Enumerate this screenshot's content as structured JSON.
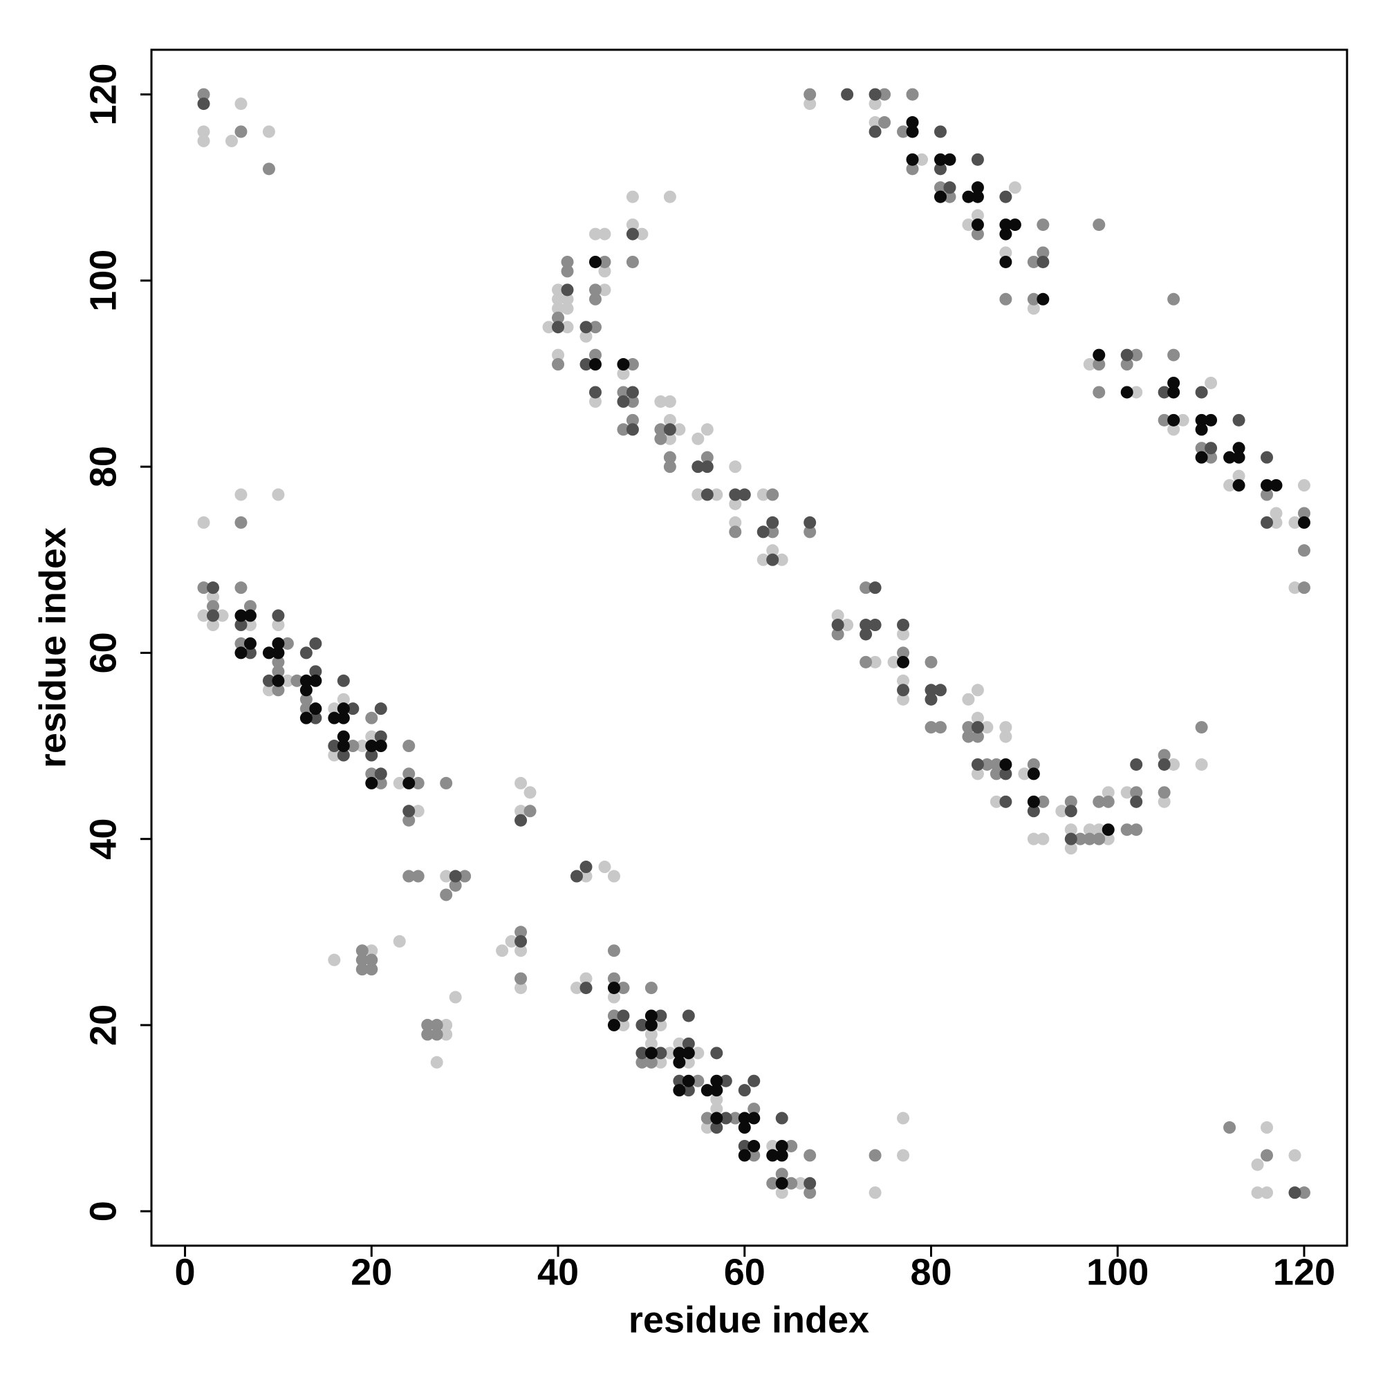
{
  "chart_data": {
    "type": "scatter",
    "xlabel": "residue index",
    "ylabel": "residue index",
    "xlim": [
      -3.6,
      124.6
    ],
    "ylim": [
      -3.7,
      124.8
    ],
    "xticks": [
      0,
      20,
      40,
      60,
      80,
      100,
      120
    ],
    "yticks": [
      0,
      20,
      40,
      60,
      80,
      100,
      120
    ],
    "series": [
      {
        "color": "#c8c8c8",
        "x": [
          2,
          2,
          6,
          5,
          9,
          2,
          6,
          10,
          2,
          3,
          3,
          4,
          7,
          10,
          9,
          11,
          16,
          17,
          16,
          19,
          20,
          23,
          25,
          28,
          16,
          20,
          23,
          28,
          28,
          27,
          29,
          34,
          35,
          36,
          36,
          36,
          37,
          36,
          43,
          45,
          46,
          42,
          43,
          46,
          47,
          50,
          51,
          50,
          52,
          51,
          53,
          55,
          54,
          57,
          57,
          56,
          63,
          66,
          64,
          74,
          77,
          77,
          116,
          119,
          115,
          115,
          116,
          70,
          71,
          74,
          76,
          77,
          77,
          77,
          84,
          85,
          85,
          86,
          85,
          88,
          88,
          87,
          90,
          91,
          92,
          94,
          95,
          95,
          97,
          98,
          99,
          99,
          101,
          106,
          105,
          109,
          39,
          40,
          40,
          40,
          41,
          41,
          41,
          40,
          44,
          45,
          45,
          45,
          43,
          44,
          48,
          52,
          48,
          49,
          47,
          51,
          52,
          52,
          53,
          52,
          55,
          56,
          55,
          57,
          59,
          59,
          59,
          62,
          63,
          62,
          64,
          67,
          74,
          74,
          79,
          84,
          85,
          89,
          88,
          91,
          97,
          102,
          110,
          107,
          106,
          112,
          113,
          117,
          117,
          120,
          119,
          119
        ],
        "y": [
          116,
          115,
          119,
          115,
          116,
          74,
          77,
          77,
          64,
          66,
          63,
          64,
          63,
          63,
          56,
          57,
          54,
          55,
          49,
          50,
          51,
          46,
          43,
          36,
          27,
          28,
          29,
          20,
          19,
          16,
          23,
          28,
          29,
          28,
          24,
          46,
          45,
          43,
          36,
          37,
          36,
          24,
          25,
          23,
          20,
          19,
          20,
          18,
          17,
          16,
          18,
          17,
          16,
          12,
          11,
          9,
          7,
          3,
          2,
          2,
          10,
          6,
          9,
          6,
          5,
          2,
          2,
          64,
          63,
          59,
          59,
          62,
          57,
          55,
          55,
          56,
          53,
          52,
          47,
          52,
          51,
          44,
          47,
          40,
          40,
          43,
          41,
          39,
          41,
          41,
          40,
          45,
          45,
          48,
          44,
          48,
          95,
          99,
          98,
          97,
          98,
          97,
          95,
          92,
          105,
          105,
          101,
          99,
          94,
          87,
          109,
          109,
          106,
          105,
          90,
          87,
          87,
          85,
          84,
          83,
          83,
          84,
          77,
          77,
          80,
          76,
          74,
          77,
          71,
          70,
          70,
          119,
          119,
          117,
          113,
          106,
          107,
          110,
          103,
          97,
          91,
          88,
          89,
          85,
          84,
          78,
          79,
          75,
          74,
          78,
          74,
          67
        ]
      },
      {
        "color": "#8c8c8c",
        "x": [
          2,
          6,
          9,
          6,
          2,
          3,
          6,
          7,
          6,
          10,
          10,
          11,
          10,
          12,
          13,
          13,
          18,
          20,
          20,
          21,
          24,
          24,
          25,
          24,
          24,
          25,
          30,
          29,
          28,
          28,
          19,
          19,
          20,
          19,
          20,
          26,
          27,
          26,
          27,
          36,
          36,
          37,
          46,
          46,
          47,
          46,
          50,
          49,
          50,
          55,
          56,
          59,
          61,
          61,
          65,
          64,
          63,
          65,
          67,
          67,
          74,
          112,
          116,
          120,
          70,
          73,
          73,
          77,
          80,
          80,
          81,
          84,
          84,
          85,
          86,
          87,
          87,
          91,
          92,
          95,
          96,
          97,
          98,
          98,
          99,
          102,
          101,
          102,
          105,
          105,
          109,
          40,
          41,
          41,
          40,
          45,
          44,
          44,
          44,
          44,
          48,
          48,
          47,
          48,
          48,
          47,
          51,
          51,
          52,
          52,
          56,
          59,
          63,
          63,
          67,
          67,
          75,
          75,
          78,
          77,
          78,
          81,
          82,
          85,
          88,
          91,
          92,
          92,
          91,
          98,
          98,
          98,
          102,
          101,
          106,
          106,
          105,
          109,
          110,
          116,
          120,
          120,
          120
        ],
        "y": [
          120,
          116,
          112,
          74,
          67,
          65,
          67,
          65,
          61,
          59,
          58,
          61,
          56,
          57,
          55,
          54,
          50,
          53,
          47,
          46,
          50,
          47,
          46,
          42,
          36,
          36,
          36,
          35,
          34,
          46,
          28,
          27,
          27,
          26,
          26,
          20,
          20,
          19,
          19,
          30,
          25,
          43,
          28,
          25,
          24,
          21,
          24,
          16,
          16,
          14,
          10,
          10,
          11,
          6,
          7,
          4,
          3,
          3,
          2,
          6,
          6,
          9,
          6,
          2,
          62,
          67,
          59,
          60,
          59,
          52,
          52,
          52,
          51,
          51,
          48,
          48,
          47,
          48,
          44,
          44,
          40,
          40,
          40,
          44,
          44,
          45,
          41,
          41,
          49,
          45,
          52,
          96,
          102,
          101,
          91,
          102,
          99,
          98,
          95,
          92,
          102,
          91,
          88,
          87,
          85,
          84,
          84,
          83,
          81,
          80,
          81,
          73,
          77,
          73,
          73,
          120,
          120,
          117,
          120,
          116,
          112,
          110,
          109,
          105,
          98,
          102,
          103,
          106,
          98,
          106,
          91,
          88,
          92,
          91,
          92,
          98,
          85,
          82,
          81,
          77,
          75,
          71,
          67
        ]
      },
      {
        "color": "#505050",
        "x": [
          2,
          3,
          3,
          6,
          7,
          10,
          9,
          13,
          14,
          14,
          14,
          17,
          18,
          16,
          17,
          21,
          21,
          20,
          21,
          24,
          29,
          36,
          36,
          42,
          43,
          43,
          47,
          49,
          51,
          49,
          51,
          54,
          54,
          53,
          54,
          57,
          58,
          58,
          57,
          61,
          60,
          60,
          64,
          67,
          119,
          70,
          74,
          73,
          74,
          73,
          77,
          77,
          80,
          81,
          80,
          85,
          85,
          88,
          88,
          91,
          95,
          95,
          102,
          102,
          105,
          40,
          41,
          48,
          43,
          43,
          44,
          48,
          47,
          48,
          52,
          55,
          56,
          56,
          59,
          60,
          62,
          63,
          63,
          67,
          71,
          74,
          74,
          81,
          81,
          82,
          85,
          88,
          92,
          101,
          105,
          109,
          110,
          113,
          116,
          116
        ],
        "y": [
          119,
          67,
          64,
          63,
          60,
          64,
          57,
          60,
          61,
          58,
          53,
          57,
          54,
          50,
          49,
          54,
          51,
          49,
          47,
          43,
          36,
          29,
          42,
          36,
          37,
          24,
          21,
          20,
          21,
          17,
          17,
          21,
          18,
          14,
          13,
          17,
          14,
          10,
          9,
          14,
          13,
          7,
          10,
          3,
          2,
          63,
          67,
          63,
          63,
          62,
          63,
          56,
          56,
          56,
          55,
          52,
          48,
          47,
          44,
          43,
          43,
          40,
          44,
          48,
          48,
          95,
          99,
          105,
          95,
          91,
          88,
          88,
          87,
          84,
          84,
          80,
          80,
          77,
          77,
          77,
          73,
          74,
          70,
          74,
          120,
          120,
          116,
          116,
          112,
          110,
          113,
          109,
          102,
          92,
          88,
          88,
          82,
          85,
          81,
          74
        ]
      },
      {
        "color": "#0a0a0a",
        "x": [
          6,
          7,
          6,
          7,
          9,
          10,
          10,
          10,
          13,
          14,
          13,
          13,
          14,
          16,
          17,
          17,
          17,
          17,
          20,
          21,
          20,
          24,
          46,
          46,
          50,
          50,
          50,
          53,
          54,
          53,
          54,
          53,
          56,
          57,
          57,
          57,
          60,
          61,
          60,
          61,
          60,
          64,
          63,
          64,
          64,
          77,
          88,
          91,
          91,
          99,
          44,
          44,
          47,
          78,
          78,
          78,
          81,
          82,
          81,
          84,
          85,
          85,
          85,
          88,
          89,
          88,
          88,
          92,
          98,
          101,
          106,
          106,
          106,
          109,
          110,
          109,
          109,
          112,
          113,
          113,
          113,
          116,
          117,
          120
        ],
        "y": [
          64,
          64,
          60,
          61,
          60,
          60,
          61,
          57,
          57,
          57,
          56,
          53,
          54,
          53,
          53,
          54,
          51,
          50,
          50,
          50,
          46,
          46,
          24,
          20,
          21,
          20,
          17,
          17,
          17,
          16,
          14,
          13,
          13,
          14,
          13,
          10,
          10,
          10,
          9,
          7,
          6,
          7,
          6,
          6,
          3,
          59,
          48,
          47,
          44,
          41,
          102,
          91,
          91,
          117,
          116,
          113,
          113,
          113,
          109,
          109,
          110,
          109,
          106,
          106,
          106,
          105,
          102,
          98,
          92,
          88,
          89,
          88,
          85,
          85,
          85,
          84,
          81,
          81,
          82,
          81,
          78,
          78,
          78,
          74
        ]
      }
    ]
  }
}
